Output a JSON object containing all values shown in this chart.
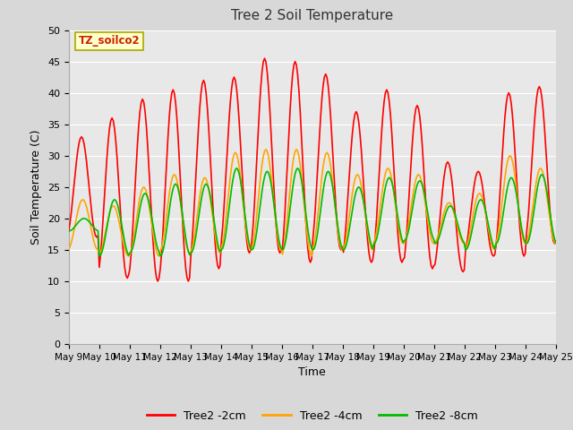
{
  "title": "Tree 2 Soil Temperature",
  "xlabel": "Time",
  "ylabel": "Soil Temperature (C)",
  "ylim": [
    0,
    50
  ],
  "yticks": [
    0,
    5,
    10,
    15,
    20,
    25,
    30,
    35,
    40,
    45,
    50
  ],
  "legend_label": "TZ_soilco2",
  "series": {
    "Tree2 -2cm": {
      "color": "#ff0000",
      "linewidth": 1.2
    },
    "Tree2 -4cm": {
      "color": "#ffa500",
      "linewidth": 1.2
    },
    "Tree2 -8cm": {
      "color": "#00bb00",
      "linewidth": 1.2
    }
  },
  "fig_bg_color": "#d8d8d8",
  "plot_bg_color": "#e8e8e8",
  "grid_color": "#ffffff",
  "num_days": 16,
  "start_day": 9,
  "tick_labels": [
    "May 9",
    "May 10",
    "May 1",
    "May 1",
    "May 1",
    "May 14",
    "May 1",
    "May 1",
    "May 1",
    "May 1",
    "May 1",
    "May 19",
    "May 20",
    "May 2",
    "May 2",
    "May 2",
    "May 24"
  ],
  "day_peaks_2cm": [
    33,
    36,
    39,
    40.5,
    42,
    42.5,
    45.5,
    45,
    43,
    37,
    40.5,
    38,
    29,
    27.5,
    40,
    41
  ],
  "day_troughs_2cm": [
    17,
    10.5,
    10,
    10,
    12,
    14.5,
    14.5,
    13,
    15,
    13,
    13,
    12,
    11.5,
    14,
    14,
    16
  ],
  "day_peaks_4cm": [
    23,
    22,
    25,
    27,
    26.5,
    30.5,
    31,
    31,
    30.5,
    27,
    28,
    27,
    22.5,
    24,
    30,
    28
  ],
  "day_troughs_4cm": [
    15,
    14,
    14,
    14.5,
    14.5,
    15,
    15,
    14,
    15,
    15,
    16,
    16,
    16,
    15,
    16,
    16
  ],
  "day_peaks_8cm": [
    20,
    23,
    24,
    25.5,
    25.5,
    28,
    27.5,
    28,
    27.5,
    25,
    26.5,
    26,
    22,
    23,
    26.5,
    27
  ],
  "day_troughs_8cm": [
    18,
    14,
    14.5,
    14,
    14.5,
    15,
    15,
    15,
    15,
    15,
    16,
    16.5,
    16,
    15,
    16,
    16
  ]
}
